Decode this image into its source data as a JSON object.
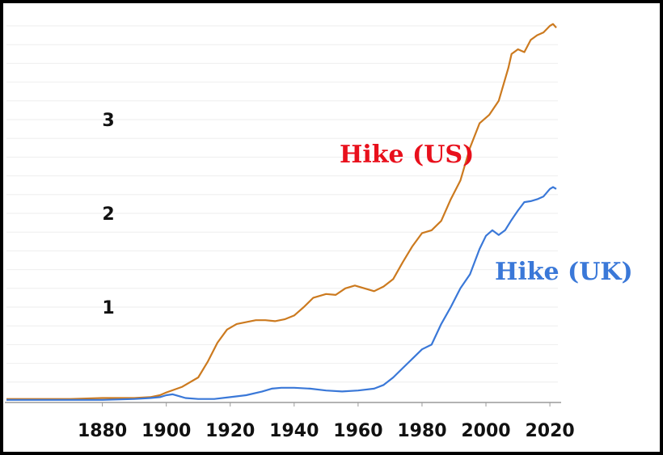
{
  "chart_data": {
    "type": "line",
    "title": "",
    "xlabel": "",
    "ylabel": "",
    "xlim": [
      1850,
      2022
    ],
    "ylim": [
      0,
      4
    ],
    "x_ticks": [
      "1880",
      "1900",
      "1920",
      "1940",
      "1960",
      "1980",
      "2000",
      "2020"
    ],
    "y_ticks": [
      "1",
      "2",
      "3"
    ],
    "grid": true,
    "series": [
      {
        "name": "Hike (US)",
        "color": "#cc7a1f",
        "label_color": "#e8101c",
        "x": [
          1850,
          1870,
          1880,
          1890,
          1895,
          1898,
          1900,
          1905,
          1910,
          1913,
          1916,
          1919,
          1922,
          1925,
          1928,
          1931,
          1934,
          1937,
          1940,
          1943,
          1946,
          1950,
          1953,
          1956,
          1959,
          1962,
          1965,
          1968,
          1971,
          1974,
          1977,
          1980,
          1983,
          1986,
          1989,
          1992,
          1995,
          1998,
          2001,
          2004,
          2007,
          2008,
          2010,
          2012,
          2014,
          2016,
          2018,
          2020,
          2021,
          2022
        ],
        "values": [
          0.02,
          0.02,
          0.03,
          0.03,
          0.04,
          0.06,
          0.09,
          0.15,
          0.25,
          0.42,
          0.62,
          0.76,
          0.82,
          0.84,
          0.86,
          0.86,
          0.85,
          0.87,
          0.91,
          1.0,
          1.1,
          1.14,
          1.13,
          1.2,
          1.23,
          1.2,
          1.17,
          1.22,
          1.3,
          1.48,
          1.65,
          1.79,
          1.82,
          1.92,
          2.15,
          2.35,
          2.7,
          2.96,
          3.05,
          3.2,
          3.55,
          3.7,
          3.75,
          3.72,
          3.85,
          3.9,
          3.93,
          4.0,
          4.02,
          3.98
        ]
      },
      {
        "name": "Hike (UK)",
        "color": "#3a78d8",
        "label_color": "#3a78d8",
        "x": [
          1850,
          1870,
          1880,
          1890,
          1895,
          1898,
          1900,
          1902,
          1904,
          1906,
          1910,
          1915,
          1920,
          1925,
          1930,
          1933,
          1936,
          1940,
          1945,
          1950,
          1955,
          1960,
          1965,
          1968,
          1971,
          1974,
          1977,
          1980,
          1983,
          1986,
          1989,
          1992,
          1995,
          1998,
          2000,
          2002,
          2004,
          2006,
          2008,
          2010,
          2012,
          2014,
          2016,
          2018,
          2020,
          2021,
          2022
        ],
        "values": [
          0.01,
          0.01,
          0.01,
          0.02,
          0.03,
          0.04,
          0.06,
          0.07,
          0.05,
          0.03,
          0.02,
          0.02,
          0.04,
          0.06,
          0.1,
          0.13,
          0.14,
          0.14,
          0.13,
          0.11,
          0.1,
          0.11,
          0.13,
          0.17,
          0.25,
          0.35,
          0.45,
          0.55,
          0.6,
          0.82,
          1.0,
          1.2,
          1.35,
          1.62,
          1.76,
          1.82,
          1.77,
          1.82,
          1.93,
          2.03,
          2.12,
          2.13,
          2.15,
          2.18,
          2.26,
          2.28,
          2.26
        ]
      }
    ]
  }
}
